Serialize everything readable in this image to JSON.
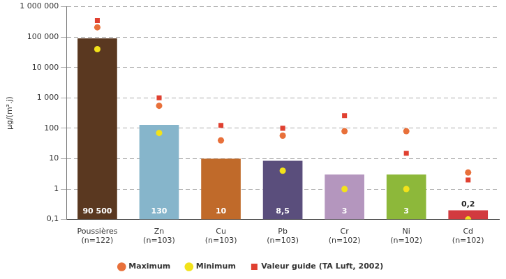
{
  "chart_data": {
    "type": "bar",
    "y_label": "µg/(m².j)",
    "categories": [
      "Poussières (n=122)",
      "Zn (n=103)",
      "Cu (n=103)",
      "Pb (n=103)",
      "Cr (n=102)",
      "Ni (n=102)",
      "Cd (n=102)"
    ],
    "values": [
      90500,
      130,
      10,
      8.5,
      3,
      3,
      0.2
    ],
    "value_labels": [
      "90 500",
      "130",
      "10",
      "8,5",
      "3",
      "3",
      "0,2"
    ],
    "colors": [
      "#5a3820",
      "#86b5cb",
      "#c06a2a",
      "#5a4e7c",
      "#b496be",
      "#8db83a",
      "#d23a3f"
    ],
    "data_labels": true,
    "log": "y",
    "grid": true,
    "legend": "bottom",
    "ylim": [
      0.1,
      1000000
    ],
    "yticks": [
      {
        "value": 0.1,
        "label": "0,1"
      },
      1,
      10,
      100,
      {
        "value": 1000,
        "label": "1 000"
      },
      {
        "value": 10000,
        "label": "10 000"
      },
      {
        "value": 100000,
        "label": "100 000"
      },
      {
        "value": 1000000,
        "label": "1 000 000"
      }
    ],
    "series": [
      {
        "name": "Maximum",
        "type": "scatter",
        "marker": "circle",
        "color": "#e8703a",
        "values": [
          210000,
          550,
          40,
          57,
          80,
          80,
          3.5
        ]
      },
      {
        "name": "Minimum",
        "type": "scatter",
        "marker": "circle",
        "color": "#f2e21a",
        "values": [
          40000,
          70,
          null,
          4,
          1,
          1,
          0.1
        ]
      },
      {
        "name": "Valeur guide (TA Luft, 2002)",
        "type": "scatter",
        "marker": "square",
        "color": "#e04030",
        "values": [
          350000,
          1000,
          125,
          100,
          260,
          15,
          2
        ]
      }
    ]
  }
}
